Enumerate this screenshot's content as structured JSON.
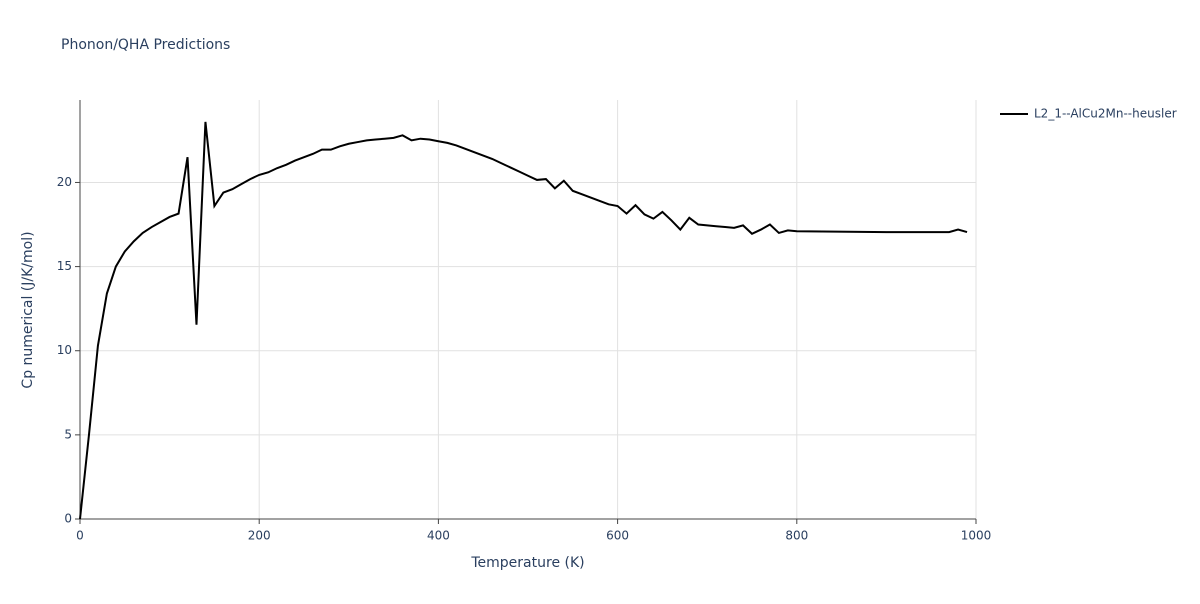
{
  "chart_data": {
    "type": "line",
    "title": "Phonon/QHA Predictions",
    "x_label": "Temperature (K)",
    "y_label": "Cp numerical (J/K/mol)",
    "x": [
      0,
      10,
      20,
      30,
      40,
      50,
      60,
      70,
      80,
      90,
      100,
      110,
      120,
      130,
      140,
      150,
      160,
      170,
      180,
      190,
      200,
      210,
      220,
      230,
      240,
      250,
      260,
      270,
      280,
      290,
      300,
      310,
      320,
      330,
      340,
      350,
      360,
      370,
      380,
      390,
      400,
      410,
      420,
      430,
      440,
      450,
      460,
      470,
      480,
      490,
      500,
      510,
      520,
      530,
      540,
      550,
      560,
      570,
      580,
      590,
      600,
      610,
      620,
      630,
      640,
      650,
      660,
      670,
      680,
      690,
      700,
      710,
      720,
      730,
      740,
      750,
      760,
      770,
      780,
      790,
      800,
      900,
      970,
      980,
      990
    ],
    "series": [
      {
        "name": "L2_1--AlCu2Mn--heusler",
        "color": "#000000",
        "values": [
          0,
          5.0,
          10.3,
          13.4,
          15.0,
          15.9,
          16.5,
          17.0,
          17.35,
          17.65,
          17.95,
          18.15,
          21.5,
          11.55,
          23.6,
          18.6,
          19.4,
          19.6,
          19.9,
          20.2,
          20.45,
          20.6,
          20.85,
          21.05,
          21.3,
          21.5,
          21.7,
          21.95,
          21.95,
          22.15,
          22.3,
          22.4,
          22.5,
          22.55,
          22.6,
          22.65,
          22.8,
          22.5,
          22.6,
          22.55,
          22.45,
          22.35,
          22.2,
          22.0,
          21.8,
          21.6,
          21.4,
          21.15,
          20.9,
          20.65,
          20.4,
          20.15,
          20.2,
          19.65,
          20.1,
          19.5,
          19.3,
          19.1,
          18.9,
          18.7,
          18.6,
          18.15,
          18.65,
          18.1,
          17.85,
          18.25,
          17.75,
          17.2,
          17.9,
          17.5,
          17.45,
          17.4,
          17.35,
          17.3,
          17.45,
          16.95,
          17.2,
          17.5,
          17.0,
          17.15,
          17.1,
          17.05,
          17.05,
          17.2,
          17.05
        ]
      }
    ],
    "xlim": [
      0,
      1000
    ],
    "xticks": [
      0,
      200,
      400,
      600,
      800,
      1000
    ],
    "ylim": [
      0,
      24.9
    ],
    "yticks": [
      0,
      5,
      10,
      15,
      20
    ],
    "grid": true,
    "legend": "right"
  }
}
